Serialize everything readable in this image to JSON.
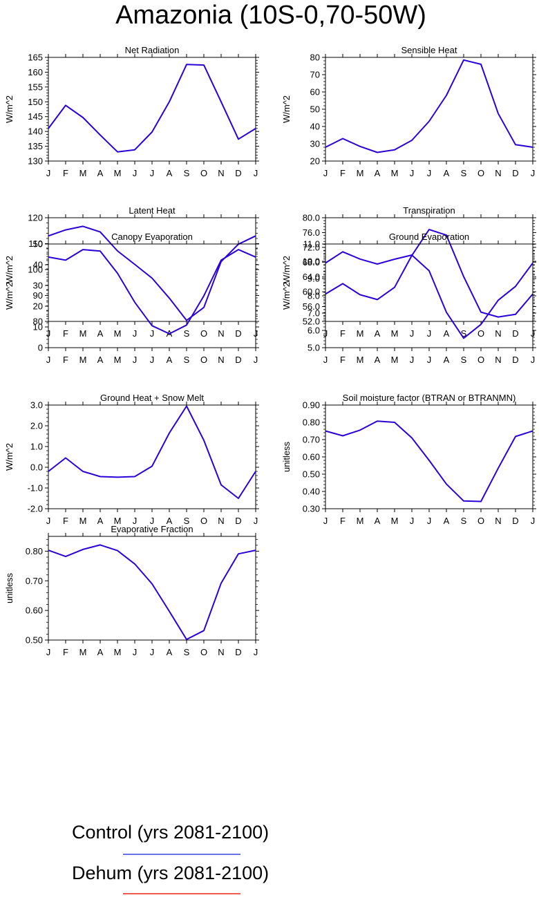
{
  "title": "Amazonia (10S-0,70-50W)",
  "months": [
    "J",
    "F",
    "M",
    "A",
    "M",
    "J",
    "J",
    "A",
    "S",
    "O",
    "N",
    "D",
    "J"
  ],
  "chart_data": [
    {
      "type": "line",
      "title": "Net Radiation",
      "ylabel": "W/m^2",
      "ylim": [
        130,
        165
      ],
      "yticks": [
        130,
        135,
        140,
        145,
        150,
        155,
        160,
        165
      ],
      "tick_labels": [
        "130",
        "135",
        "140",
        "145",
        "150",
        "155",
        "160",
        "165"
      ],
      "series": [
        {
          "name": "Control (yrs 2081-2100)",
          "color": "#2b00d9",
          "values": [
            141,
            148.8,
            144.7,
            138.8,
            133.1,
            133.8,
            139.8,
            150,
            162.6,
            162.4,
            150,
            137.4,
            141
          ]
        }
      ]
    },
    {
      "type": "line",
      "title": "Sensible Heat",
      "ylabel": "W/m^2",
      "ylim": [
        20,
        80
      ],
      "yticks": [
        20,
        30,
        40,
        50,
        60,
        70,
        80
      ],
      "tick_labels": [
        "20",
        "30",
        "40",
        "50",
        "60",
        "70",
        "80"
      ],
      "series": [
        {
          "name": "Control (yrs 2081-2100)",
          "color": "#2b00d9",
          "values": [
            28,
            33,
            28.5,
            25,
            26.5,
            32,
            43,
            58,
            78.5,
            76,
            47.5,
            29.5,
            28
          ]
        }
      ]
    },
    {
      "type": "line",
      "title": "Latent Heat",
      "ylabel": "W/m^2",
      "ylim": [
        80,
        120
      ],
      "yticks": [
        80,
        90,
        100,
        110,
        120
      ],
      "tick_labels": [
        "80",
        "90",
        "100",
        "110",
        "120"
      ],
      "series": [
        {
          "name": "Control (yrs 2081-2100)",
          "color": "#2b00d9",
          "values": [
            113,
            115.3,
            116.7,
            114.5,
            107.2,
            102,
            96.7,
            89,
            80.4,
            85.4,
            103.1,
            109.8,
            113
          ]
        }
      ]
    },
    {
      "type": "line",
      "title": "Transpiration",
      "ylabel": "W/m^2",
      "ylim": [
        52,
        80
      ],
      "yticks": [
        52,
        56,
        60,
        64,
        68,
        72,
        76,
        80
      ],
      "tick_labels": [
        "52.0",
        "56.0",
        "60.0",
        "64.0",
        "68.0",
        "72.0",
        "76.0",
        "80.0"
      ],
      "series": [
        {
          "name": "Control (yrs 2081-2100)",
          "color": "#2b00d9",
          "values": [
            59.4,
            62.2,
            59.2,
            57.9,
            61.2,
            69.8,
            76.8,
            75.3,
            64.1,
            54.5,
            53.2,
            53.9,
            59.4
          ]
        }
      ]
    },
    {
      "type": "line",
      "title": "Canopy Evaporation",
      "ylabel": "W/m^2",
      "ylim": [
        0,
        50
      ],
      "yticks": [
        0,
        10,
        20,
        30,
        40,
        50
      ],
      "tick_labels": [
        "0",
        "10",
        "20",
        "30",
        "40",
        "50"
      ],
      "series": [
        {
          "name": "Control (yrs 2081-2100)",
          "color": "#2b00d9",
          "values": [
            43.7,
            42.2,
            47.3,
            46.6,
            35.9,
            21.9,
            10.6,
            6.7,
            10.9,
            25,
            42.2,
            47.3,
            43.7
          ]
        }
      ]
    },
    {
      "type": "line",
      "title": "Ground Evaporation",
      "ylabel": "W/m^2",
      "ylim": [
        5,
        11
      ],
      "yticks": [
        5,
        6,
        7,
        8,
        9,
        10,
        11
      ],
      "tick_labels": [
        "5.0",
        "6.0",
        "7.0",
        "8.0",
        "9.0",
        "10.0",
        "11.0"
      ],
      "series": [
        {
          "name": "Control (yrs 2081-2100)",
          "color": "#2b00d9",
          "values": [
            9.9,
            10.55,
            10.13,
            9.84,
            10.12,
            10.36,
            9.45,
            7.05,
            5.55,
            6.35,
            7.75,
            8.55,
            9.9
          ]
        }
      ]
    },
    {
      "type": "line",
      "title": "Ground Heat + Snow Melt",
      "ylabel": "W/m^2",
      "ylim": [
        -2,
        3
      ],
      "yticks": [
        -2,
        -1,
        0,
        1,
        2,
        3
      ],
      "tick_labels": [
        "-2.0",
        "-1.0",
        "0.0",
        "1.0",
        "2.0",
        "3.0"
      ],
      "series": [
        {
          "name": "Control (yrs 2081-2100)",
          "color": "#2b00d9",
          "values": [
            -0.2,
            0.45,
            -0.2,
            -0.45,
            -0.48,
            -0.45,
            0.05,
            1.65,
            2.95,
            1.3,
            -0.85,
            -1.5,
            -0.2
          ]
        }
      ]
    },
    {
      "type": "line",
      "title": "Soil moisture factor (BTRAN or BTRANMN)",
      "ylabel": "unitless",
      "ylim": [
        0.3,
        0.9
      ],
      "yticks": [
        0.3,
        0.4,
        0.5,
        0.6,
        0.7,
        0.8,
        0.9
      ],
      "tick_labels": [
        "0.30",
        "0.40",
        "0.50",
        "0.60",
        "0.70",
        "0.80",
        "0.90"
      ],
      "series": [
        {
          "name": "Control (yrs 2081-2100)",
          "color": "#2b00d9",
          "values": [
            0.75,
            0.722,
            0.755,
            0.807,
            0.8,
            0.71,
            0.58,
            0.443,
            0.345,
            0.342,
            0.535,
            0.718,
            0.75
          ]
        }
      ]
    },
    {
      "type": "line",
      "title": "Evaporative Fraction",
      "ylabel": "unitless",
      "ylim": [
        0.5,
        0.85
      ],
      "yticks": [
        0.5,
        0.6,
        0.7,
        0.8
      ],
      "tick_labels": [
        "0.50",
        "0.60",
        "0.70",
        "0.80"
      ],
      "series": [
        {
          "name": "Control (yrs 2081-2100)",
          "color": "#2b00d9",
          "values": [
            0.803,
            0.782,
            0.806,
            0.821,
            0.802,
            0.757,
            0.69,
            0.597,
            0.502,
            0.532,
            0.692,
            0.791,
            0.803
          ]
        }
      ]
    }
  ],
  "legend": [
    {
      "label": "Control (yrs 2081-2100)",
      "color": "#3344dd"
    },
    {
      "label": "Dehum (yrs 2081-2100)",
      "color": "#ee2211"
    }
  ]
}
